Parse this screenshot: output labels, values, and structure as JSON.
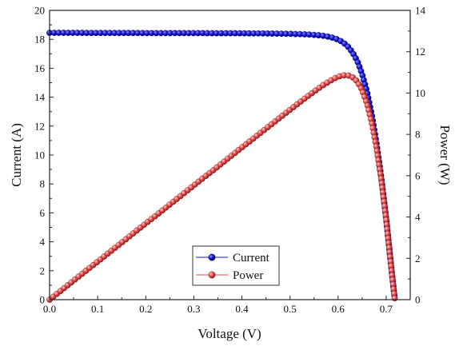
{
  "chart_data": {
    "type": "scatter",
    "xlabel": "Voltage (V)",
    "ylabel_left": "Current (A)",
    "ylabel_right": "Power (W)",
    "xlim": [
      0,
      0.75
    ],
    "ylim_left": [
      0,
      20
    ],
    "ylim_right": [
      0,
      14
    ],
    "x_ticks": [
      "0.0",
      "0.1",
      "0.2",
      "0.3",
      "0.4",
      "0.5",
      "0.6",
      "0.7"
    ],
    "y_left_ticks": [
      "0",
      "2",
      "4",
      "6",
      "8",
      "10",
      "12",
      "14",
      "16",
      "18",
      "20"
    ],
    "y_right_ticks": [
      "0",
      "2",
      "4",
      "6",
      "8",
      "10",
      "12",
      "14"
    ],
    "legend_position": "bottom-center",
    "grid": false,
    "series": [
      {
        "name": "Current",
        "axis": "left",
        "color": "#1414d2",
        "x": [
          0.0,
          0.02,
          0.04,
          0.06,
          0.08,
          0.1,
          0.12,
          0.14,
          0.16,
          0.18,
          0.2,
          0.22,
          0.24,
          0.26,
          0.28,
          0.3,
          0.32,
          0.34,
          0.36,
          0.38,
          0.4,
          0.42,
          0.44,
          0.46,
          0.48,
          0.5,
          0.52,
          0.54,
          0.56,
          0.57,
          0.58,
          0.59,
          0.6,
          0.61,
          0.62,
          0.63,
          0.64,
          0.65,
          0.66,
          0.67,
          0.68,
          0.69,
          0.7,
          0.705,
          0.71,
          0.715,
          0.718
        ],
        "y": [
          18.45,
          18.45,
          18.45,
          18.45,
          18.44,
          18.44,
          18.44,
          18.44,
          18.44,
          18.44,
          18.43,
          18.43,
          18.43,
          18.43,
          18.43,
          18.43,
          18.43,
          18.42,
          18.42,
          18.42,
          18.42,
          18.41,
          18.41,
          18.4,
          18.39,
          18.38,
          18.36,
          18.33,
          18.28,
          18.24,
          18.18,
          18.1,
          17.98,
          17.8,
          17.52,
          17.1,
          16.5,
          15.6,
          14.4,
          12.8,
          10.8,
          8.4,
          5.6,
          4.0,
          2.4,
          0.9,
          0.0
        ]
      },
      {
        "name": "Power",
        "axis": "right",
        "color": "#e04848",
        "x": [
          0.0,
          0.02,
          0.04,
          0.06,
          0.08,
          0.1,
          0.12,
          0.14,
          0.16,
          0.18,
          0.2,
          0.22,
          0.24,
          0.26,
          0.28,
          0.3,
          0.32,
          0.34,
          0.36,
          0.38,
          0.4,
          0.42,
          0.44,
          0.46,
          0.48,
          0.5,
          0.52,
          0.54,
          0.56,
          0.57,
          0.58,
          0.59,
          0.6,
          0.61,
          0.62,
          0.63,
          0.64,
          0.65,
          0.66,
          0.67,
          0.68,
          0.69,
          0.7,
          0.705,
          0.71,
          0.715,
          0.718
        ],
        "y": [
          0.0,
          0.37,
          0.74,
          1.11,
          1.48,
          1.84,
          2.21,
          2.58,
          2.95,
          3.32,
          3.69,
          4.05,
          4.42,
          4.79,
          5.16,
          5.53,
          5.9,
          6.26,
          6.63,
          7.0,
          7.37,
          7.73,
          8.1,
          8.46,
          8.83,
          9.19,
          9.55,
          9.9,
          10.24,
          10.4,
          10.54,
          10.68,
          10.79,
          10.86,
          10.86,
          10.77,
          10.56,
          10.14,
          9.5,
          8.58,
          7.34,
          5.8,
          3.92,
          2.82,
          1.7,
          0.64,
          0.0
        ]
      }
    ]
  }
}
